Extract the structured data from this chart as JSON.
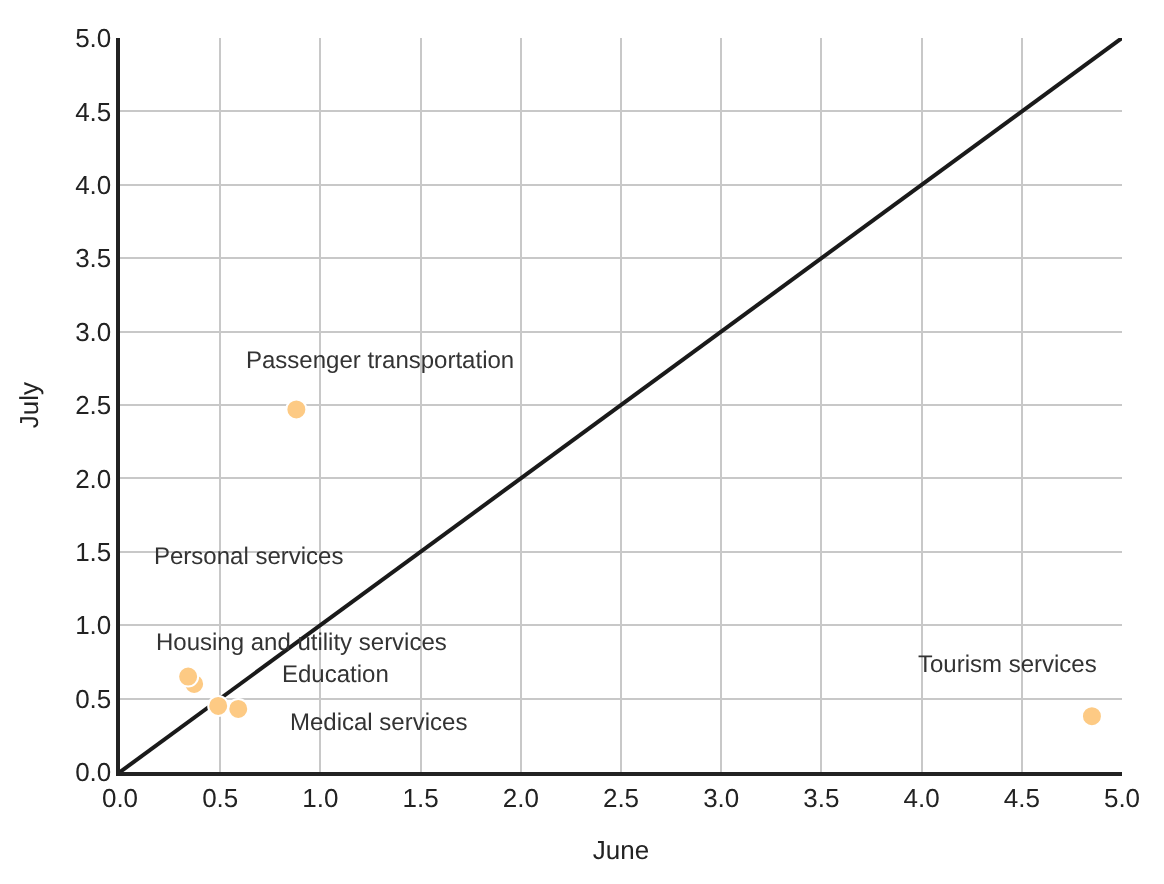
{
  "chart_data": {
    "type": "scatter",
    "xlabel": "June",
    "ylabel": "July",
    "xlim": [
      0,
      5
    ],
    "ylim": [
      0,
      5
    ],
    "xticks": [
      {
        "value": 0,
        "label": "0.0"
      },
      0.5,
      {
        "value": 1,
        "label": "1.0"
      },
      1.5,
      {
        "value": 2,
        "label": "2.0"
      },
      2.5,
      {
        "value": 3,
        "label": "3.0"
      },
      3.5,
      {
        "value": 4,
        "label": "4.0"
      },
      4.5,
      {
        "value": 5,
        "label": "5.0"
      }
    ],
    "yticks": [
      {
        "value": 0,
        "label": "0.0"
      },
      0.5,
      {
        "value": 1,
        "label": "1.0"
      },
      1.5,
      {
        "value": 2,
        "label": "2.0"
      },
      2.5,
      {
        "value": 3,
        "label": "3.0"
      },
      3.5,
      {
        "value": 4,
        "label": "4.0"
      },
      4.5,
      {
        "value": 5,
        "label": "5.0"
      }
    ],
    "grid": true,
    "marker": "circle",
    "series": [
      {
        "type": "line",
        "color": "#1a1a1a",
        "x": [
          0,
          5
        ],
        "values": [
          0,
          5
        ],
        "marker": "none"
      },
      {
        "color": "#fdca84",
        "x": [
          0.88,
          4.85,
          0.34,
          0.37,
          0.49,
          0.59
        ],
        "values": [
          2.47,
          0.38,
          0.65,
          0.6,
          0.45,
          0.43
        ]
      }
    ],
    "annotations": [
      {
        "text": "Passenger transportation",
        "x": 0.88,
        "y": 2.47
      },
      {
        "text": "Tourism services",
        "x": 4.85,
        "y": 0.38
      },
      "Personal services",
      {
        "text": "Housing and utility services",
        "x": 0.37,
        "y": 0.6
      },
      {
        "text": "Education",
        "x": 0.49,
        "y": 0.45
      },
      {
        "text": "Medical services",
        "x": 0.59,
        "y": 0.43
      }
    ]
  }
}
